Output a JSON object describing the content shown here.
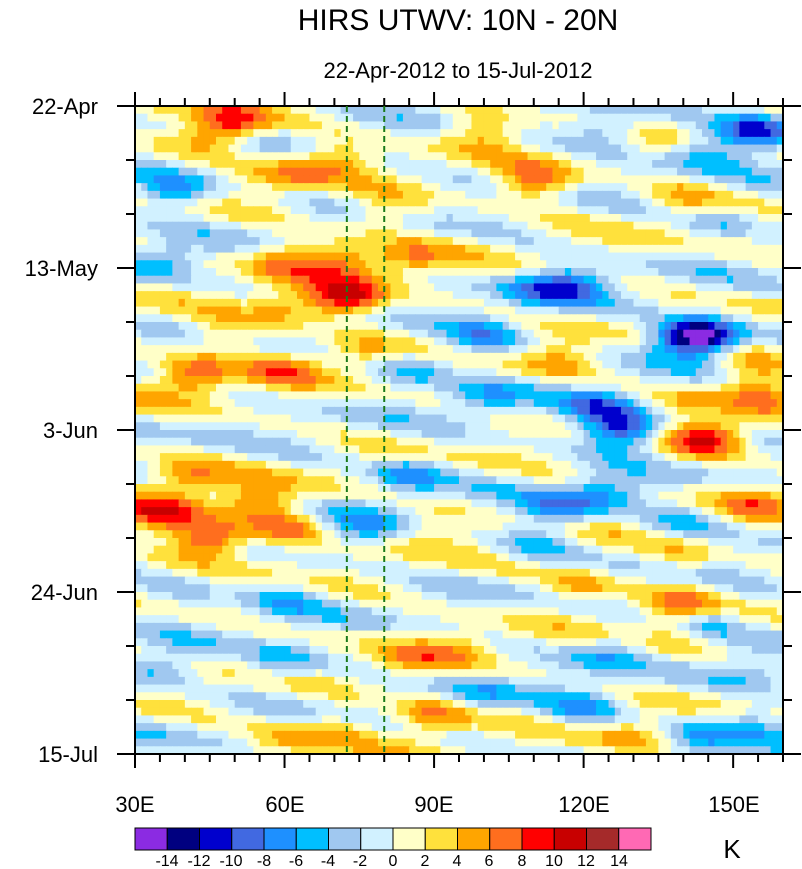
{
  "chart_data": {
    "type": "heatmap",
    "title": "HIRS UTWV: 10N - 20N",
    "subtitle": "22-Apr-2012 to 15-Jul-2012",
    "xlabel": "",
    "ylabel": "",
    "units": "K",
    "xlim": [
      30,
      160
    ],
    "ylim_days": [
      0,
      84
    ],
    "x_ticks": [
      {
        "value": 30,
        "label": "30E"
      },
      {
        "value": 60,
        "label": "60E"
      },
      {
        "value": 90,
        "label": "90E"
      },
      {
        "value": 120,
        "label": "120E"
      },
      {
        "value": 150,
        "label": "150E"
      }
    ],
    "y_ticks": [
      {
        "value": 0,
        "label": "22-Apr"
      },
      {
        "value": 21,
        "label": "13-May"
      },
      {
        "value": 42,
        "label": "3-Jun"
      },
      {
        "value": 63,
        "label": "24-Jun"
      },
      {
        "value": 84,
        "label": "15-Jul"
      }
    ],
    "reference_lines": [
      {
        "x": 72.5
      },
      {
        "x": 80
      }
    ],
    "colorbar": {
      "levels": [
        -14,
        -12,
        -10,
        -8,
        -6,
        -4,
        -2,
        0,
        2,
        4,
        6,
        8,
        10,
        12,
        14
      ],
      "labels": [
        "-14",
        "-12",
        "-10",
        "-8",
        "-6",
        "-4",
        "-2",
        "0",
        "2",
        "4",
        "6",
        "8",
        "10",
        "12",
        "14"
      ],
      "colors": [
        "#8b2be2",
        "#000080",
        "#0000cd",
        "#4169e1",
        "#1e90ff",
        "#00bfff",
        "#a0c8f0",
        "#d1f1ff",
        "#ffffc8",
        "#ffe13c",
        "#ffa500",
        "#ff6e1e",
        "#ff0000",
        "#c80000",
        "#a52a2a",
        "#ff69b4"
      ]
    },
    "features": [
      {
        "lon": 50,
        "day": 2,
        "value": 8
      },
      {
        "lon": 45,
        "day": 4,
        "value": 5
      },
      {
        "lon": 38,
        "day": 11,
        "value": -7
      },
      {
        "lon": 60,
        "day": 9,
        "value": 4
      },
      {
        "lon": 70,
        "day": 7,
        "value": 5
      },
      {
        "lon": 80,
        "day": 14,
        "value": 4
      },
      {
        "lon": 110,
        "day": 10,
        "value": 7
      },
      {
        "lon": 100,
        "day": 3,
        "value": 5
      },
      {
        "lon": 125,
        "day": 3,
        "value": -5
      },
      {
        "lon": 155,
        "day": 3,
        "value": -11
      },
      {
        "lon": 145,
        "day": 6,
        "value": -5
      },
      {
        "lon": 140,
        "day": 12,
        "value": 4
      },
      {
        "lon": 148,
        "day": 15,
        "value": -4
      },
      {
        "lon": 35,
        "day": 20,
        "value": -5
      },
      {
        "lon": 60,
        "day": 20,
        "value": 6
      },
      {
        "lon": 72,
        "day": 20,
        "value": 6
      },
      {
        "lon": 85,
        "day": 20,
        "value": 5
      },
      {
        "lon": 72,
        "day": 25,
        "value": 10
      },
      {
        "lon": 60,
        "day": 26,
        "value": 5
      },
      {
        "lon": 48,
        "day": 30,
        "value": 4
      },
      {
        "lon": 42,
        "day": 35,
        "value": 8
      },
      {
        "lon": 60,
        "day": 34,
        "value": 5
      },
      {
        "lon": 75,
        "day": 32,
        "value": 4
      },
      {
        "lon": 110,
        "day": 24,
        "value": -5
      },
      {
        "lon": 118,
        "day": 23,
        "value": -7
      },
      {
        "lon": 100,
        "day": 30,
        "value": -6
      },
      {
        "lon": 86,
        "day": 34,
        "value": -5
      },
      {
        "lon": 100,
        "day": 38,
        "value": -5
      },
      {
        "lon": 115,
        "day": 33,
        "value": 4
      },
      {
        "lon": 140,
        "day": 30,
        "value": -8
      },
      {
        "lon": 144,
        "day": 30,
        "value": -12
      },
      {
        "lon": 128,
        "day": 42,
        "value": -12
      },
      {
        "lon": 123,
        "day": 39,
        "value": -7
      },
      {
        "lon": 140,
        "day": 38,
        "value": 3
      },
      {
        "lon": 145,
        "day": 43,
        "value": 10
      },
      {
        "lon": 155,
        "day": 37,
        "value": 6
      },
      {
        "lon": 155,
        "day": 33,
        "value": 4
      },
      {
        "lon": 85,
        "day": 48,
        "value": -7
      },
      {
        "lon": 40,
        "day": 48,
        "value": 6
      },
      {
        "lon": 45,
        "day": 56,
        "value": 11
      },
      {
        "lon": 35,
        "day": 53,
        "value": 9
      },
      {
        "lon": 55,
        "day": 51,
        "value": 6
      },
      {
        "lon": 60,
        "day": 55,
        "value": 6
      },
      {
        "lon": 75,
        "day": 55,
        "value": -5
      },
      {
        "lon": 90,
        "day": 55,
        "value": 3
      },
      {
        "lon": 115,
        "day": 52,
        "value": -7
      },
      {
        "lon": 125,
        "day": 50,
        "value": -5
      },
      {
        "lon": 155,
        "day": 51,
        "value": 5
      },
      {
        "lon": 110,
        "day": 57,
        "value": -4
      },
      {
        "lon": 140,
        "day": 58,
        "value": 3
      },
      {
        "lon": 140,
        "day": 54,
        "value": -4
      },
      {
        "lon": 40,
        "day": 63,
        "value": -3
      },
      {
        "lon": 60,
        "day": 64,
        "value": -4
      },
      {
        "lon": 120,
        "day": 62,
        "value": 5
      },
      {
        "lon": 145,
        "day": 67,
        "value": -7
      },
      {
        "lon": 140,
        "day": 65,
        "value": 6
      },
      {
        "lon": 35,
        "day": 73,
        "value": -5
      },
      {
        "lon": 60,
        "day": 72,
        "value": -5
      },
      {
        "lon": 85,
        "day": 72,
        "value": 4
      },
      {
        "lon": 95,
        "day": 70,
        "value": 3
      },
      {
        "lon": 125,
        "day": 71,
        "value": -5
      },
      {
        "lon": 140,
        "day": 69,
        "value": 4
      },
      {
        "lon": 155,
        "day": 73,
        "value": -4
      },
      {
        "lon": 90,
        "day": 79,
        "value": 7
      },
      {
        "lon": 70,
        "day": 81,
        "value": 4
      },
      {
        "lon": 60,
        "day": 82,
        "value": 4
      },
      {
        "lon": 120,
        "day": 78,
        "value": -5
      },
      {
        "lon": 143,
        "day": 82,
        "value": -6
      },
      {
        "lon": 155,
        "day": 80,
        "value": -4
      },
      {
        "lon": 130,
        "day": 82,
        "value": 4
      },
      {
        "lon": 100,
        "day": 76,
        "value": -4
      }
    ]
  }
}
